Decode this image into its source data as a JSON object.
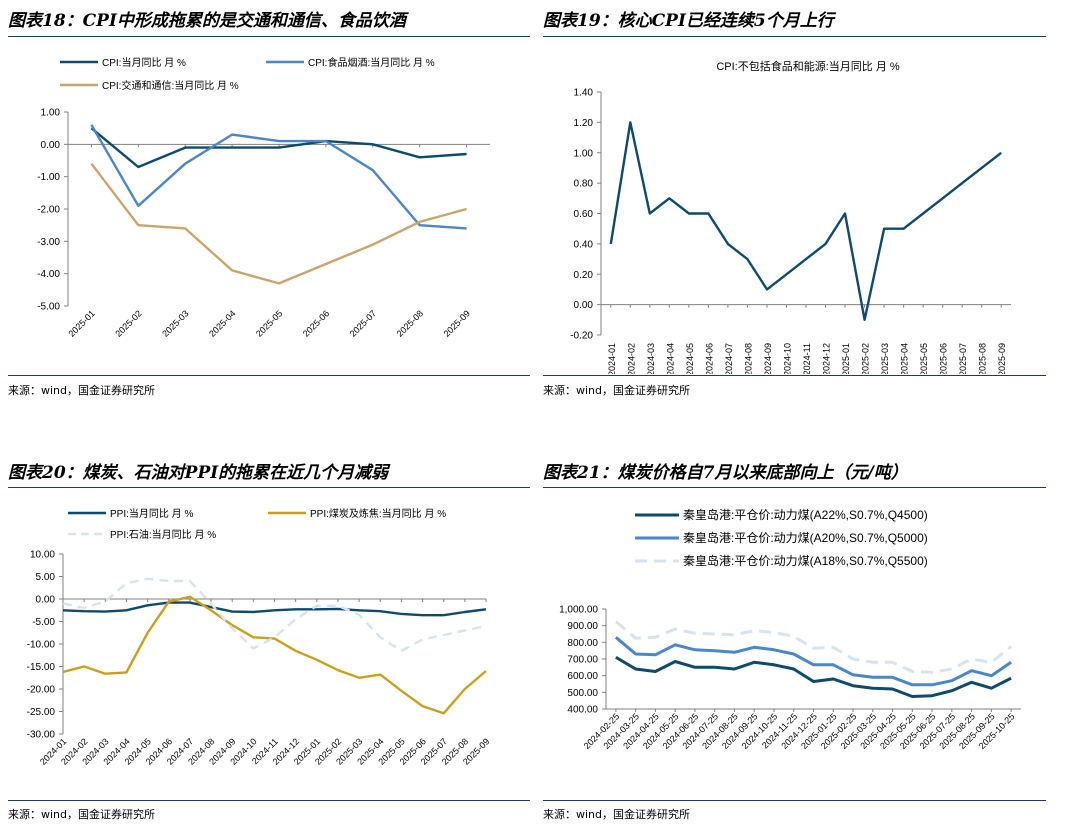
{
  "source_text": "来源：wind，国金证券研究所",
  "chart_data": [
    {
      "type": "line",
      "figure_title": "图表18：CPI中形成拖累的是交通和通信、食品饮酒",
      "categories": [
        "2025-01",
        "2025-02",
        "2025-03",
        "2025-04",
        "2025-05",
        "2025-06",
        "2025-07",
        "2025-08",
        "2025-09"
      ],
      "ylim": [
        -5,
        1
      ],
      "yticks": [
        1,
        0,
        -1,
        -2,
        -3,
        -4,
        -5
      ],
      "ytick_labels": [
        "1.00",
        "0.00",
        "-1.00",
        "-2.00",
        "-3.00",
        "-4.00",
        "-5.00"
      ],
      "series": [
        {
          "name": "CPI:当月同比 月 %",
          "color": "#0d4a6b",
          "dash": "",
          "values": [
            0.5,
            -0.7,
            -0.1,
            -0.1,
            -0.1,
            0.1,
            0.0,
            -0.4,
            -0.3
          ]
        },
        {
          "name": "CPI:食品烟酒:当月同比 月 %",
          "color": "#4a86c8",
          "dash": "",
          "values": [
            0.6,
            -1.9,
            -0.6,
            0.3,
            0.1,
            0.1,
            -0.8,
            -2.5,
            -2.6
          ]
        },
        {
          "name": "CPI:交通和通信:当月同比 月 %",
          "color": "#c9a46b",
          "dash": "",
          "values": [
            -0.6,
            -2.5,
            -2.6,
            -3.9,
            -4.3,
            -3.7,
            -3.1,
            -2.4,
            -2.0
          ]
        }
      ]
    },
    {
      "type": "line",
      "figure_title": "图表19：核心CPI已经连续5个月上行",
      "title": "CPI:不包括食品和能源:当月同比 月 %",
      "categories": [
        "2024-01",
        "2024-02",
        "2024-03",
        "2024-04",
        "2024-05",
        "2024-06",
        "2024-07",
        "2024-08",
        "2024-09",
        "2024-10",
        "2024-11",
        "2024-12",
        "2025-01",
        "2025-02",
        "2025-03",
        "2025-04",
        "2025-05",
        "2025-06",
        "2025-07",
        "2025-08",
        "2025-09"
      ],
      "ylim": [
        -0.2,
        1.4
      ],
      "yticks": [
        1.4,
        1.2,
        1.0,
        0.8,
        0.6,
        0.4,
        0.2,
        0.0,
        -0.2
      ],
      "ytick_labels": [
        "1.40",
        "1.20",
        "1.00",
        "0.80",
        "0.60",
        "0.40",
        "0.20",
        "0.00",
        "-0.20"
      ],
      "series": [
        {
          "name": "CPI:不包括食品和能源:当月同比 月 %",
          "color": "#0d4a6b",
          "dash": "",
          "values": [
            0.4,
            1.2,
            0.6,
            0.7,
            0.6,
            0.6,
            0.4,
            0.3,
            0.1,
            0.2,
            0.3,
            0.4,
            0.6,
            -0.1,
            0.5,
            0.5,
            0.6,
            0.7,
            0.8,
            0.9,
            1.0
          ]
        }
      ]
    },
    {
      "type": "line",
      "figure_title": "图表20：煤炭、石油对PPI的拖累在近几个月减弱",
      "categories": [
        "2024-01",
        "2024-02",
        "2024-03",
        "2024-04",
        "2024-05",
        "2024-06",
        "2024-07",
        "2024-08",
        "2024-09",
        "2024-10",
        "2024-11",
        "2024-12",
        "2025-01",
        "2025-02",
        "2025-03",
        "2025-04",
        "2025-05",
        "2025-06",
        "2025-07",
        "2025-08",
        "2025-09"
      ],
      "ylim": [
        -30,
        10
      ],
      "yticks": [
        10,
        5,
        0,
        -5,
        -10,
        -15,
        -20,
        -25,
        -30
      ],
      "ytick_labels": [
        "10.00",
        "5.00",
        "0.00",
        "-5.00",
        "-10.00",
        "-15.00",
        "-20.00",
        "-25.00",
        "-30.00"
      ],
      "series": [
        {
          "name": "PPI:当月同比 月 %",
          "color": "#0d4a6b",
          "dash": "",
          "values": [
            -2.5,
            -2.7,
            -2.8,
            -2.5,
            -1.4,
            -0.8,
            -0.8,
            -1.8,
            -2.8,
            -2.9,
            -2.5,
            -2.3,
            -2.3,
            -2.2,
            -2.5,
            -2.7,
            -3.3,
            -3.6,
            -3.6,
            -2.9,
            -2.3
          ]
        },
        {
          "name": "PPI:煤炭及炼焦:当月同比 月 %",
          "color": "#c9a01e",
          "dash": "",
          "values": [
            -16.2,
            -15.0,
            -16.6,
            -16.3,
            -7.5,
            -0.6,
            0.5,
            -2.5,
            -5.8,
            -8.5,
            -8.8,
            -11.5,
            -13.5,
            -15.8,
            -17.5,
            -16.8,
            -20.4,
            -23.8,
            -25.4,
            -20.0,
            -16.0
          ]
        },
        {
          "name": "PPI:石油:当月同比 月 %",
          "color": "#d6e4f0",
          "dash": "9 6",
          "values": [
            -1.0,
            -2.0,
            -0.5,
            3.5,
            4.5,
            4.0,
            4.0,
            -1.0,
            -6.5,
            -11.0,
            -8.5,
            -4.5,
            -1.5,
            -1.5,
            -3.5,
            -8.5,
            -11.5,
            -9.0,
            -8.0,
            -7.0,
            -6.0
          ]
        }
      ]
    },
    {
      "type": "line",
      "figure_title": "图表21：煤炭价格自7月以来底部向上（元/吨）",
      "categories": [
        "2024-02-25",
        "2024-03-25",
        "2024-04-25",
        "2024-05-25",
        "2024-06-25",
        "2024-07-25",
        "2024-08-25",
        "2024-09-25",
        "2024-10-25",
        "2024-11-25",
        "2024-12-25",
        "2025-01-25",
        "2025-02-25",
        "2025-03-25",
        "2025-04-25",
        "2025-05-25",
        "2025-06-25",
        "2025-07-25",
        "2025-08-25",
        "2025-09-25",
        "2025-10-25"
      ],
      "ylim": [
        400,
        1000
      ],
      "yticks": [
        1000,
        900,
        800,
        700,
        600,
        500,
        400
      ],
      "ytick_labels": [
        "1,000.00",
        "900.00",
        "800.00",
        "700.00",
        "600.00",
        "500.00",
        "400.00"
      ],
      "series": [
        {
          "name": "秦皇岛港:平仓价:动力煤(A22%,S0.7%,Q4500)",
          "color": "#0d4a6b",
          "dash": "",
          "values": [
            710,
            640,
            625,
            685,
            650,
            650,
            640,
            680,
            665,
            640,
            565,
            580,
            540,
            525,
            520,
            475,
            480,
            510,
            560,
            525,
            585
          ]
        },
        {
          "name": "秦皇岛港:平仓价:动力煤(A20%,S0.7%,Q5000)",
          "color": "#4a86c8",
          "dash": "",
          "values": [
            830,
            730,
            725,
            785,
            755,
            750,
            740,
            770,
            755,
            730,
            665,
            665,
            605,
            590,
            590,
            545,
            545,
            570,
            630,
            600,
            680
          ]
        },
        {
          "name": "秦皇岛港:平仓价:动力煤(A18%,S0.7%,Q5500)",
          "color": "#d6e4f0",
          "dash": "12 7",
          "values": [
            925,
            825,
            830,
            880,
            855,
            850,
            845,
            870,
            860,
            835,
            765,
            770,
            700,
            680,
            680,
            625,
            620,
            640,
            700,
            680,
            775
          ]
        }
      ]
    }
  ]
}
